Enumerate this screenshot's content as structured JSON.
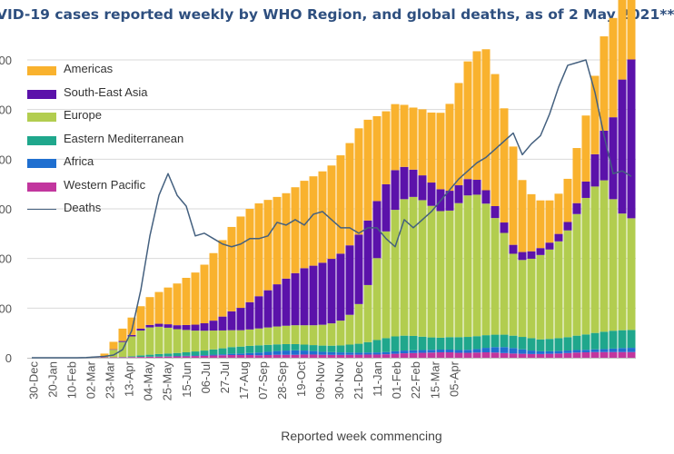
{
  "chart_data": {
    "type": "bar",
    "stacked": true,
    "title": "VID-19 cases reported weekly by WHO Region, and global deaths, as of 2 May 2021**",
    "xlabel": "Reported week commencing",
    "ylabel": "",
    "ylim": [
      0,
      6000000
    ],
    "deaths_ylim": [
      0,
      110000
    ],
    "tick_labels": [
      "30-Dec",
      "20-Jan",
      "10-Feb",
      "02-Mar",
      "23-Mar",
      "13-Apr",
      "04-May",
      "25-May",
      "15-Jun",
      "06-Jul",
      "27-Jul",
      "17-Aug",
      "07-Sep",
      "28-Sep",
      "19-Oct",
      "09-Nov",
      "30-Nov",
      "21-Dec",
      "11-Jan",
      "01-Feb",
      "22-Feb",
      "15-Mar",
      "05-Apr"
    ],
    "ytick_labels": [
      "0",
      "00",
      "00",
      "00",
      "00",
      "00",
      "00"
    ],
    "series": [
      {
        "name": "Western Pacific",
        "color": "#c2369e",
        "values": [
          0,
          0,
          0,
          0,
          1,
          2,
          3,
          6,
          9,
          10,
          12,
          15,
          17,
          20,
          22,
          25,
          28,
          30,
          35,
          40,
          45,
          50,
          55,
          55,
          55,
          50,
          55,
          60,
          60,
          60,
          65,
          65,
          60,
          58,
          58,
          60,
          62,
          65,
          65,
          70,
          80,
          90,
          95,
          100,
          105,
          110,
          110,
          100,
          100,
          105,
          110,
          105,
          95,
          85,
          80,
          75,
          75,
          80,
          85,
          95,
          105,
          110,
          115,
          115,
          115,
          115,
          115
        ]
      },
      {
        "name": "Africa",
        "color": "#1f6fd0",
        "values": [
          0,
          0,
          0,
          0,
          0,
          0,
          0,
          0,
          0,
          0,
          0,
          0,
          1,
          2,
          3,
          5,
          8,
          10,
          12,
          15,
          18,
          20,
          25,
          30,
          40,
          55,
          65,
          75,
          85,
          90,
          80,
          70,
          60,
          55,
          50,
          45,
          40,
          40,
          42,
          45,
          50,
          55,
          55,
          55,
          55,
          55,
          55,
          55,
          60,
          70,
          90,
          110,
          120,
          110,
          90,
          70,
          55,
          50,
          50,
          50,
          50,
          50,
          55,
          60,
          70,
          80,
          85
        ]
      },
      {
        "name": "Eastern Mediterranean",
        "color": "#1fa78c",
        "values": [
          0,
          0,
          0,
          0,
          0,
          0,
          0,
          0,
          0,
          1,
          5,
          15,
          30,
          40,
          50,
          55,
          60,
          70,
          80,
          90,
          105,
          120,
          135,
          140,
          145,
          145,
          140,
          135,
          130,
          125,
          120,
          120,
          125,
          130,
          140,
          160,
          180,
          210,
          250,
          280,
          300,
          300,
          290,
          270,
          250,
          240,
          250,
          260,
          260,
          260,
          255,
          250,
          250,
          250,
          250,
          250,
          240,
          250,
          260,
          270,
          290,
          310,
          330,
          350,
          360,
          360,
          360
        ]
      },
      {
        "name": "Europe",
        "color": "#b2cd4f",
        "values": [
          0,
          0,
          0,
          0,
          0,
          0,
          0,
          5,
          20,
          150,
          300,
          400,
          500,
          550,
          550,
          520,
          480,
          450,
          420,
          400,
          380,
          360,
          340,
          330,
          330,
          340,
          350,
          360,
          370,
          380,
          390,
          400,
          420,
          450,
          500,
          600,
          800,
          1150,
          1650,
          2150,
          2550,
          2750,
          2800,
          2750,
          2650,
          2550,
          2550,
          2700,
          2850,
          2850,
          2650,
          2350,
          2050,
          1650,
          1550,
          1600,
          1700,
          1800,
          1950,
          2150,
          2450,
          2750,
          2950,
          3050,
          2650,
          2350,
          2250
        ]
      },
      {
        "name": "South-East Asia",
        "color": "#5b12aa",
        "values": [
          0,
          0,
          0,
          0,
          0,
          0,
          0,
          0,
          5,
          10,
          20,
          30,
          40,
          50,
          60,
          70,
          80,
          100,
          120,
          150,
          200,
          280,
          380,
          450,
          550,
          650,
          750,
          850,
          950,
          1050,
          1150,
          1200,
          1250,
          1300,
          1350,
          1400,
          1400,
          1300,
          1150,
          950,
          800,
          650,
          550,
          500,
          470,
          440,
          400,
          360,
          330,
          300,
          270,
          240,
          210,
          180,
          160,
          150,
          140,
          140,
          150,
          170,
          220,
          330,
          650,
          1000,
          1650,
          2700,
          3200
        ]
      },
      {
        "name": "Americas",
        "color": "#f9b22e",
        "values": [
          0,
          0,
          0,
          0,
          0,
          2,
          5,
          15,
          50,
          150,
          250,
          350,
          450,
          560,
          640,
          740,
          840,
          950,
          1050,
          1180,
          1360,
          1540,
          1700,
          1840,
          1880,
          1870,
          1820,
          1760,
          1720,
          1730,
          1760,
          1800,
          1840,
          1880,
          1980,
          2060,
          2140,
          2030,
          1710,
          1470,
          1330,
          1250,
          1250,
          1330,
          1410,
          1540,
          1750,
          2060,
          2370,
          2590,
          2840,
          2660,
          2300,
          1980,
          1450,
          1150,
          960,
          850,
          810,
          870,
          1110,
          1330,
          1580,
          1900,
          2000,
          2050,
          2100
        ]
      }
    ],
    "deaths": {
      "name": "Deaths",
      "color": "#44607f",
      "values": [
        0,
        0,
        0,
        0,
        0,
        0,
        100,
        300,
        500,
        1000,
        3000,
        10000,
        25000,
        45000,
        60000,
        68000,
        60000,
        56000,
        45000,
        46000,
        44000,
        42000,
        41000,
        42000,
        44000,
        44000,
        45000,
        50000,
        49000,
        51000,
        49000,
        53000,
        54000,
        51000,
        48000,
        48000,
        46000,
        48000,
        48000,
        44000,
        41000,
        51000,
        48000,
        51000,
        54000,
        58000,
        62000,
        66000,
        69000,
        72000,
        74000,
        77000,
        80000,
        83000,
        75000,
        79000,
        82000,
        90000,
        100000,
        108000,
        109000,
        110000,
        98000,
        82000,
        68000,
        69000,
        67000
      ]
    }
  }
}
